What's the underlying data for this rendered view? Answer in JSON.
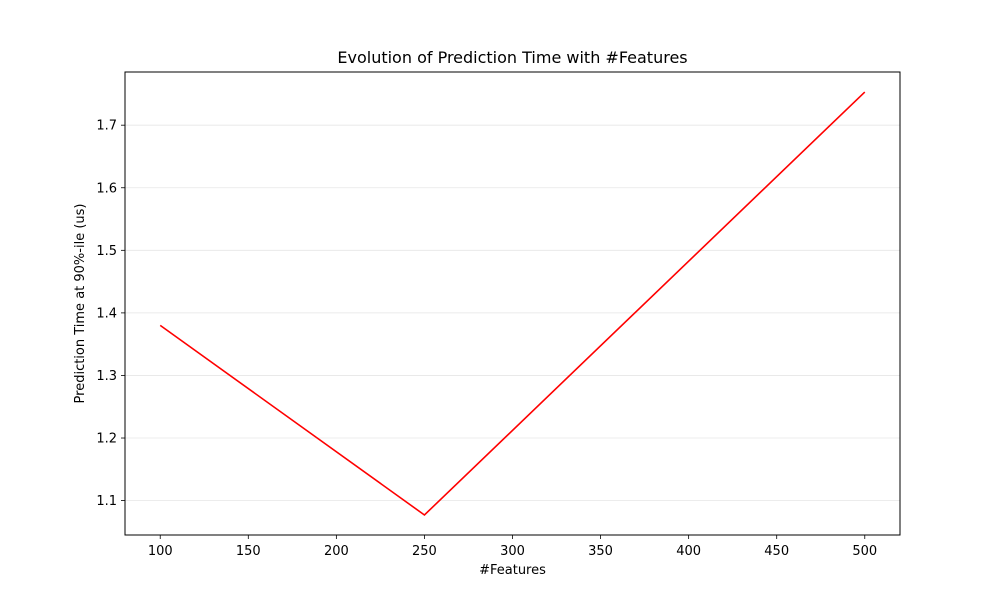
{
  "chart_data": {
    "type": "line",
    "title": "Evolution of Prediction Time with #Features",
    "xlabel": "#Features",
    "ylabel": "Prediction Time at 90%-ile (us)",
    "x": [
      100,
      250,
      500
    ],
    "series": [
      {
        "values": [
          1.38,
          1.077,
          1.753
        ],
        "color": "#ff0000"
      }
    ],
    "xlim": [
      80,
      520
    ],
    "ylim": [
      1.045,
      1.785
    ],
    "xticks": [
      100,
      150,
      200,
      250,
      300,
      350,
      400,
      450,
      500
    ],
    "yticks": [
      1.1,
      1.2,
      1.3,
      1.4,
      1.5,
      1.6,
      1.7
    ],
    "grid": {
      "y": true,
      "x": false
    },
    "legend": "none"
  }
}
